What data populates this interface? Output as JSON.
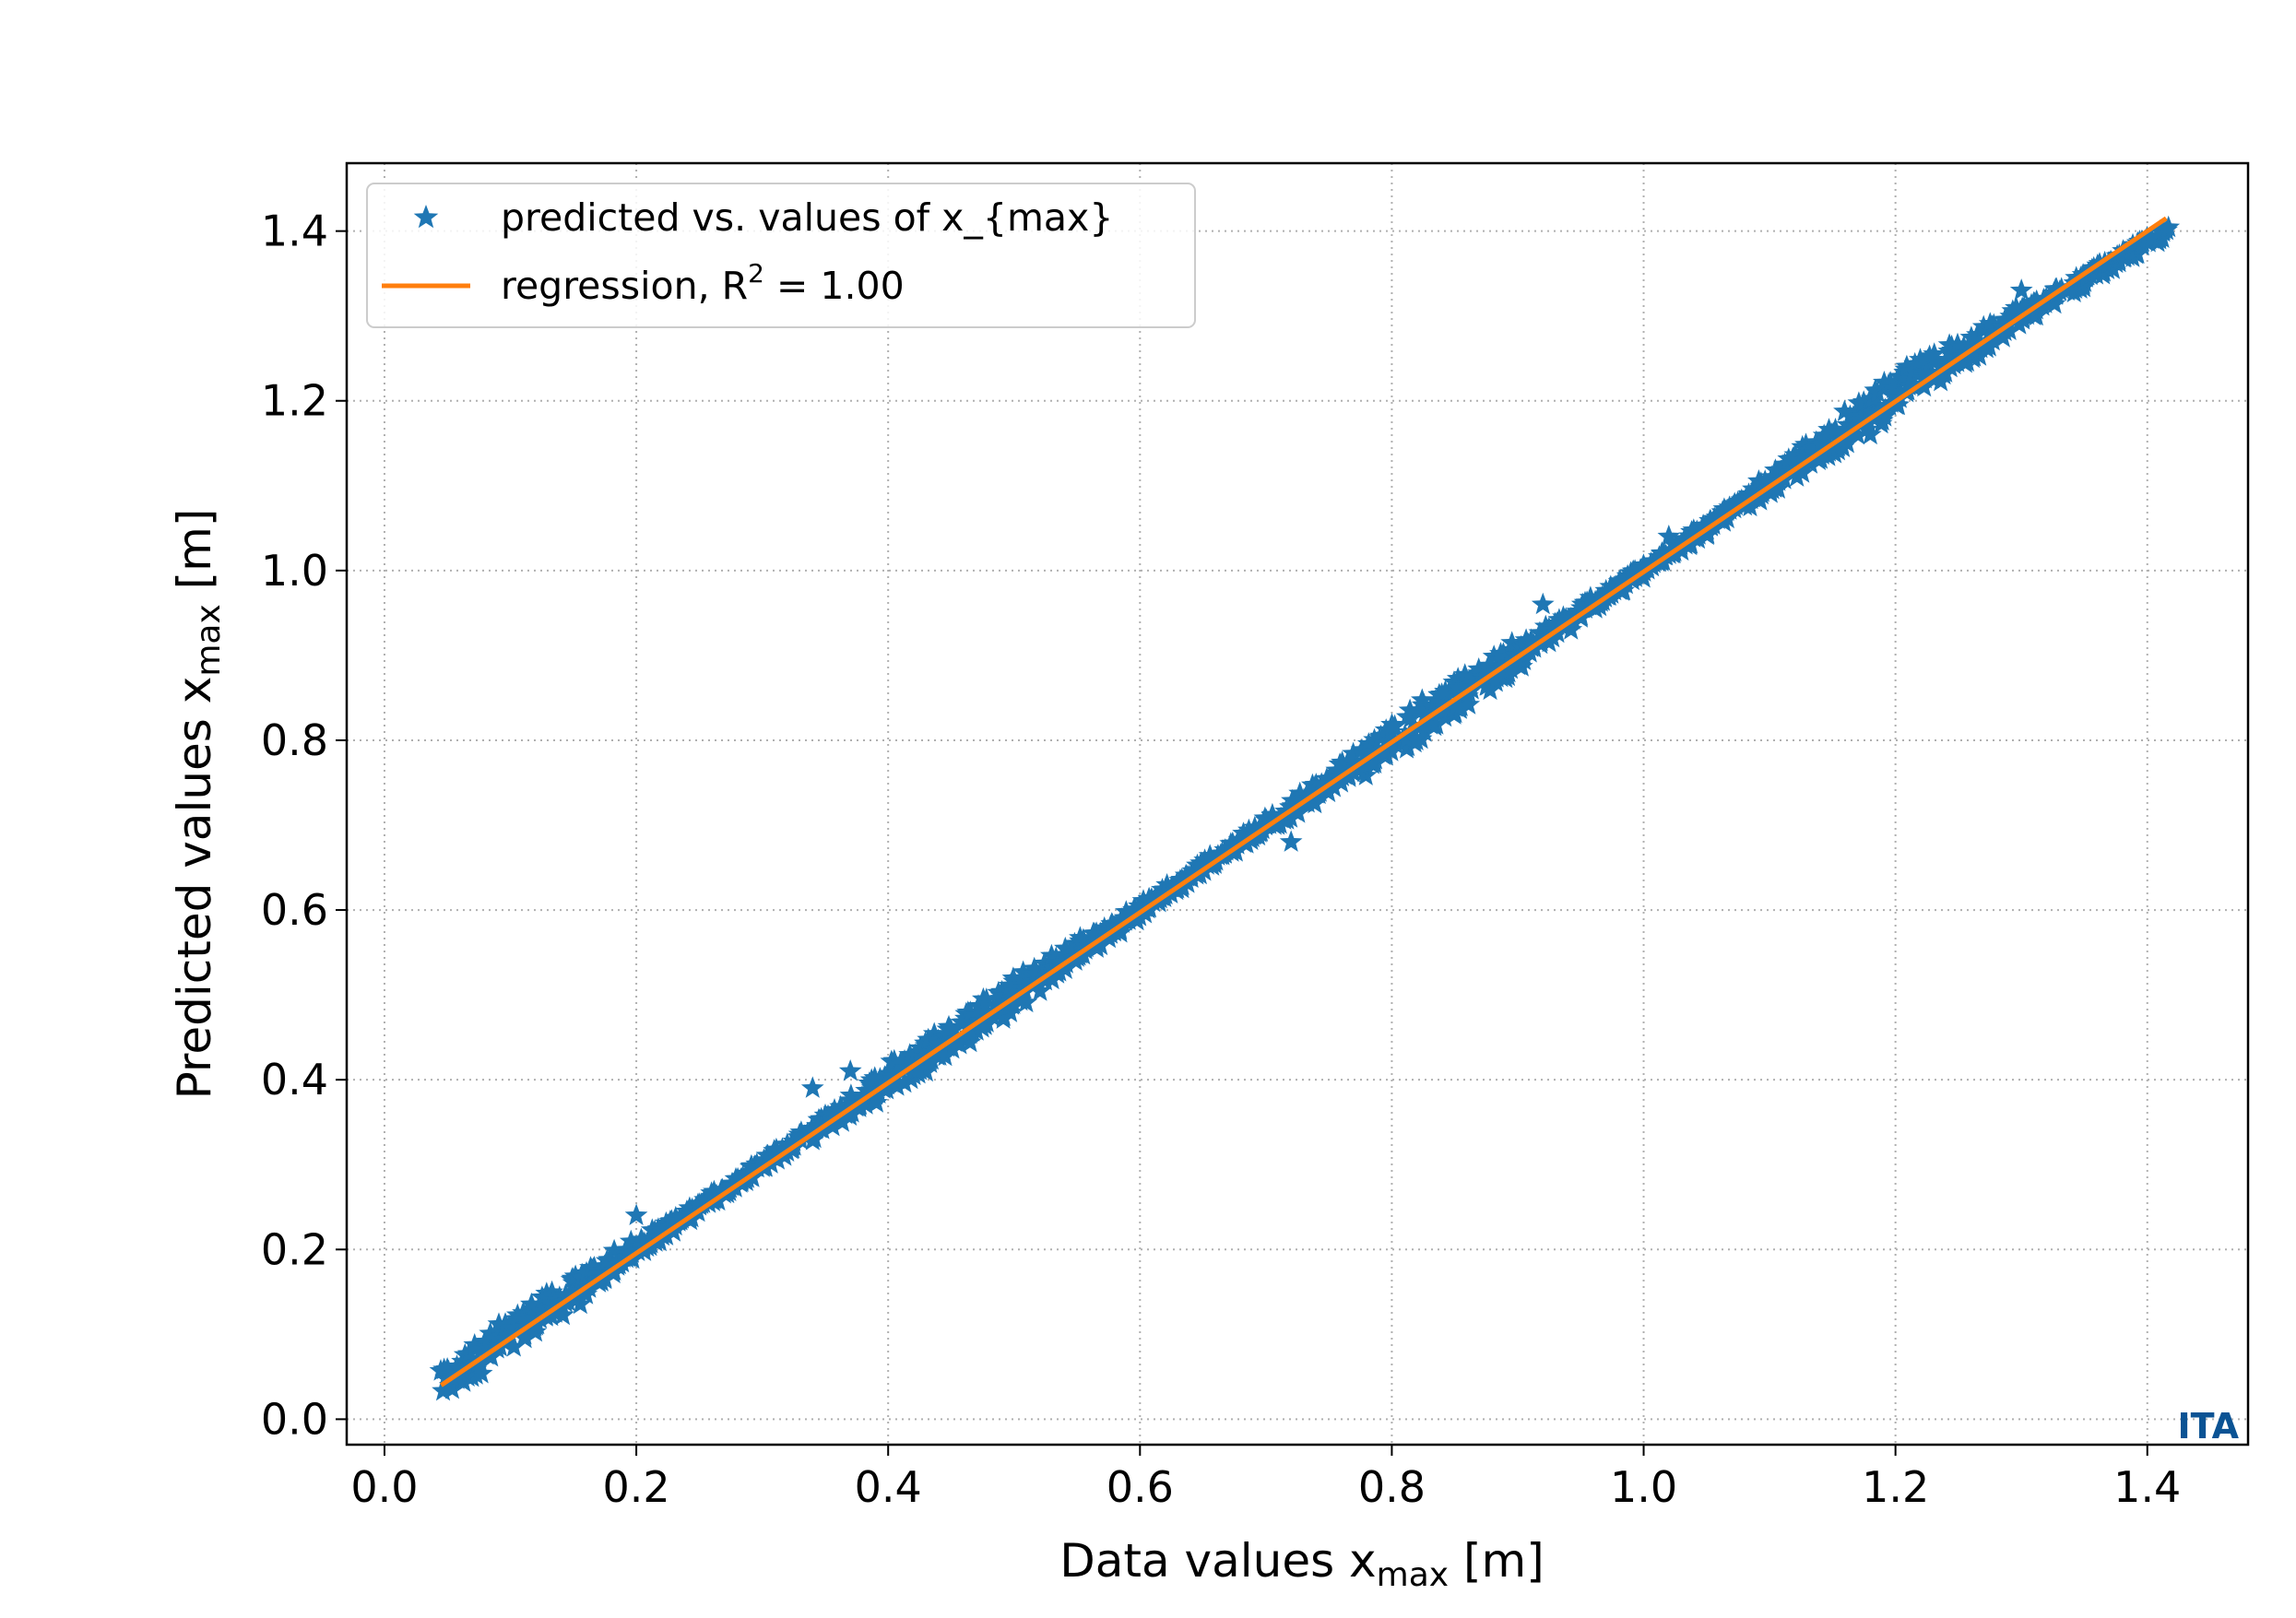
{
  "chart_data": {
    "type": "scatter",
    "xlabel_main": "Data values x",
    "xlabel_sub": "max",
    "xlabel_unit": " [m]",
    "ylabel_main": "Predicted values x",
    "ylabel_sub": "max",
    "ylabel_unit": " [m]",
    "xlim": [
      -0.03,
      1.48
    ],
    "ylim": [
      -0.03,
      1.48
    ],
    "xticks": [
      "0.0",
      "0.2",
      "0.4",
      "0.6",
      "0.8",
      "1.0",
      "1.2",
      "1.4"
    ],
    "yticks": [
      "0.0",
      "0.2",
      "0.4",
      "0.6",
      "0.8",
      "1.0",
      "1.2",
      "1.4"
    ],
    "grid": true,
    "legend_position": "top-left",
    "series": [
      {
        "name": "predicted vs. values of x_{max}",
        "kind": "scatter",
        "marker": "star",
        "color": "#1f77b4",
        "x_range": [
          0.045,
          1.415
        ],
        "trend": [
          [
            0.045,
            0.04
          ],
          [
            0.1,
            0.1
          ],
          [
            0.2,
            0.2
          ],
          [
            0.3,
            0.3
          ],
          [
            0.4,
            0.4
          ],
          [
            0.5,
            0.5
          ],
          [
            0.6,
            0.6
          ],
          [
            0.7,
            0.7
          ],
          [
            0.8,
            0.8
          ],
          [
            0.9,
            0.9
          ],
          [
            1.0,
            1.0
          ],
          [
            1.1,
            1.1
          ],
          [
            1.2,
            1.21
          ],
          [
            1.3,
            1.3
          ],
          [
            1.415,
            1.4
          ]
        ],
        "spread": 0.02,
        "outliers": [
          [
            0.34,
            0.39
          ],
          [
            0.37,
            0.41
          ],
          [
            0.2,
            0.24
          ],
          [
            0.72,
            0.68
          ],
          [
            1.3,
            1.33
          ],
          [
            1.18,
            1.16
          ],
          [
            0.92,
            0.96
          ],
          [
            1.02,
            1.04
          ]
        ]
      },
      {
        "name": "regression, R",
        "name_sup": "2",
        "name_suffix": " = 1.00",
        "kind": "line",
        "color": "#ff7f0e",
        "x": [
          0.045,
          1.415
        ],
        "y": [
          0.04,
          1.415
        ]
      }
    ]
  },
  "logo": {
    "text": "ITA"
  }
}
